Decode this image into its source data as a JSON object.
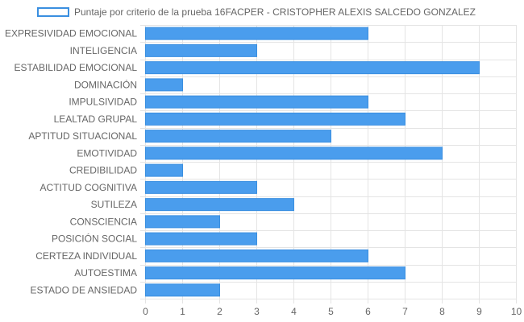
{
  "chart_data": {
    "type": "bar",
    "orientation": "horizontal",
    "categories": [
      "EXPRESIVIDAD EMOCIONAL",
      "INTELIGENCIA",
      "ESTABILIDAD EMOCIONAL",
      "DOMINACIÓN",
      "IMPULSIVIDAD",
      "LEALTAD GRUPAL",
      "APTITUD SITUACIONAL",
      "EMOTIVIDAD",
      "CREDIBILIDAD",
      "ACTITUD COGNITIVA",
      "SUTILEZA",
      "CONSCIENCIA",
      "POSICIÓN SOCIAL",
      "CERTEZA INDIVIDUAL",
      "AUTOESTIMA",
      "ESTADO DE ANSIEDAD"
    ],
    "series": [
      {
        "name": "Puntaje por criterio de la prueba 16FACPER - CRISTOPHER ALEXIS SALCEDO GONZALEZ",
        "values": [
          6,
          3,
          9,
          1,
          6,
          7,
          5,
          8,
          1,
          3,
          4,
          2,
          3,
          6,
          7,
          2
        ]
      }
    ],
    "xlim": [
      0,
      10
    ],
    "xticks": [
      "0",
      "1",
      "2",
      "3",
      "4",
      "5",
      "6",
      "7",
      "8",
      "9",
      "10"
    ],
    "grid": true,
    "legend_position": "top",
    "colors": {
      "bar": "#4a9ded",
      "bar_border": "#3a8fe0",
      "grid": "#e4e4e4",
      "text": "#666666"
    }
  }
}
